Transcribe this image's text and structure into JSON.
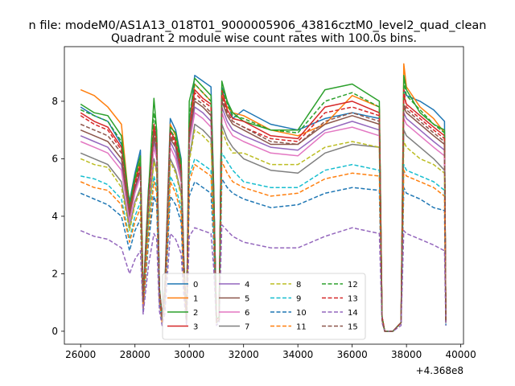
{
  "suptitle": "n file: modeM0/AS1A13_018T01_9000005906_43816cztM0_level2_quad_clean",
  "chart_data": {
    "type": "line",
    "title": "Quadrant 2 module wise count rates with 100.0s bins.",
    "xlabel": "",
    "ylabel": "",
    "x_offset_label": "+4.368e8",
    "xlim": [
      25400,
      40100
    ],
    "ylim": [
      -0.45,
      9.9
    ],
    "x_ticks": [
      26000,
      28000,
      30000,
      32000,
      34000,
      36000,
      38000,
      40000
    ],
    "x_tick_labels": [
      "26000",
      "28000",
      "30000",
      "32000",
      "34000",
      "36000",
      "38000",
      "40000"
    ],
    "y_ticks": [
      0,
      2,
      4,
      6,
      8
    ],
    "y_tick_labels": [
      "0",
      "2",
      "4",
      "6",
      "8"
    ],
    "grid": false,
    "legend_position": "lower-center",
    "legend_columns": 4,
    "x": [
      26000,
      26500,
      27000,
      27500,
      27800,
      28000,
      28200,
      28300,
      28500,
      28700,
      28800,
      28900,
      29000,
      29100,
      29300,
      29500,
      29700,
      29800,
      29900,
      30000,
      30200,
      30500,
      30800,
      30900,
      31000,
      31100,
      31200,
      31400,
      31600,
      32000,
      33000,
      34000,
      35000,
      36000,
      37000,
      37100,
      37200,
      37500,
      37800,
      37900,
      38000,
      38500,
      39000,
      39400,
      39450
    ],
    "series": [
      {
        "name": "0",
        "color": "#1f77b4",
        "dash": "solid",
        "values": [
          7.8,
          7.5,
          7.3,
          6.5,
          4.5,
          5.5,
          6.3,
          1.2,
          5.0,
          6.8,
          7.0,
          1.5,
          0.5,
          1.5,
          7.4,
          7.0,
          6.0,
          2.5,
          0.4,
          7.2,
          8.9,
          8.7,
          8.5,
          5.0,
          0.4,
          0.5,
          8.5,
          8.0,
          7.4,
          7.7,
          7.2,
          7.0,
          7.4,
          7.6,
          7.4,
          0.5,
          0.0,
          0.0,
          0.3,
          8.4,
          8.2,
          8.0,
          7.7,
          7.3,
          0.3
        ]
      },
      {
        "name": "1",
        "color": "#ff7f0e",
        "dash": "solid",
        "values": [
          8.4,
          8.2,
          7.8,
          7.2,
          4.3,
          5.3,
          6.0,
          1.1,
          4.8,
          6.5,
          6.8,
          1.4,
          0.5,
          1.4,
          7.2,
          6.8,
          5.8,
          2.4,
          0.4,
          7.0,
          8.6,
          8.3,
          8.0,
          4.8,
          0.4,
          0.5,
          8.2,
          7.8,
          7.6,
          7.5,
          7.0,
          6.8,
          7.2,
          8.2,
          7.8,
          0.5,
          0.0,
          0.0,
          0.3,
          9.3,
          8.5,
          7.8,
          7.4,
          6.9,
          0.3
        ]
      },
      {
        "name": "2",
        "color": "#2ca02c",
        "dash": "solid",
        "values": [
          7.9,
          7.6,
          7.5,
          6.8,
          4.4,
          5.4,
          6.1,
          1.2,
          4.9,
          8.1,
          7.0,
          1.5,
          0.5,
          1.4,
          7.1,
          6.9,
          5.9,
          2.4,
          0.4,
          8.0,
          8.8,
          8.5,
          8.2,
          4.9,
          0.4,
          0.5,
          8.7,
          8.0,
          7.6,
          7.3,
          7.0,
          7.0,
          8.4,
          8.6,
          8.0,
          0.5,
          0.0,
          0.0,
          0.3,
          8.9,
          8.4,
          7.6,
          7.2,
          7.0,
          0.3
        ]
      },
      {
        "name": "3",
        "color": "#d62728",
        "dash": "solid",
        "values": [
          7.6,
          7.3,
          7.1,
          6.4,
          4.2,
          5.2,
          5.8,
          1.1,
          4.7,
          7.2,
          6.6,
          1.4,
          0.5,
          1.3,
          7.0,
          6.6,
          5.7,
          2.3,
          0.4,
          7.0,
          8.4,
          8.1,
          7.9,
          4.7,
          0.4,
          0.5,
          8.4,
          7.7,
          7.4,
          7.3,
          6.8,
          6.7,
          7.8,
          8.0,
          7.6,
          0.5,
          0.0,
          0.0,
          0.3,
          8.2,
          7.9,
          7.5,
          7.1,
          6.8,
          0.3
        ]
      },
      {
        "name": "4",
        "color": "#9467bd",
        "dash": "solid",
        "values": [
          6.8,
          6.6,
          6.4,
          5.8,
          3.9,
          4.9,
          5.5,
          1.0,
          4.4,
          6.6,
          6.2,
          1.3,
          0.4,
          1.2,
          6.6,
          6.2,
          5.3,
          2.2,
          0.4,
          6.6,
          7.8,
          7.6,
          7.3,
          4.4,
          0.3,
          0.4,
          7.8,
          7.3,
          7.0,
          6.8,
          6.4,
          6.3,
          7.0,
          7.3,
          7.0,
          0.4,
          0.0,
          0.0,
          0.3,
          7.6,
          7.4,
          7.0,
          6.6,
          6.3,
          0.3
        ]
      },
      {
        "name": "5",
        "color": "#8c564b",
        "dash": "solid",
        "values": [
          7.0,
          6.8,
          6.6,
          6.0,
          4.0,
          5.0,
          5.6,
          1.0,
          4.5,
          6.8,
          6.3,
          1.3,
          0.4,
          1.3,
          6.7,
          6.4,
          5.5,
          2.2,
          0.4,
          6.8,
          8.0,
          7.8,
          7.5,
          4.5,
          0.3,
          0.4,
          8.0,
          7.5,
          7.2,
          7.0,
          6.5,
          6.5,
          7.2,
          7.5,
          7.2,
          0.4,
          0.0,
          0.0,
          0.3,
          7.8,
          7.6,
          7.2,
          6.8,
          6.5,
          0.3
        ]
      },
      {
        "name": "6",
        "color": "#e377c2",
        "dash": "solid",
        "values": [
          6.6,
          6.4,
          6.2,
          5.6,
          3.8,
          4.8,
          5.4,
          1.0,
          4.3,
          6.4,
          6.0,
          1.3,
          0.4,
          1.2,
          6.4,
          6.0,
          5.2,
          2.1,
          0.4,
          6.5,
          7.6,
          7.4,
          7.1,
          4.3,
          0.3,
          0.4,
          7.6,
          7.1,
          6.8,
          6.6,
          6.2,
          6.1,
          6.9,
          7.1,
          6.8,
          0.4,
          0.0,
          0.0,
          0.3,
          7.4,
          7.2,
          6.8,
          6.4,
          6.1,
          0.3
        ]
      },
      {
        "name": "7",
        "color": "#7f7f7f",
        "dash": "solid",
        "values": [
          6.2,
          6.0,
          5.8,
          5.2,
          3.6,
          4.5,
          5.0,
          0.9,
          4.0,
          6.0,
          5.6,
          1.2,
          0.4,
          1.1,
          6.0,
          5.6,
          4.8,
          2.0,
          0.3,
          6.0,
          7.2,
          7.0,
          6.7,
          4.0,
          0.3,
          0.4,
          7.2,
          6.7,
          6.4,
          6.0,
          5.6,
          5.5,
          6.2,
          6.5,
          6.4,
          0.4,
          0.0,
          0.0,
          0.3,
          7.0,
          6.8,
          6.4,
          6.0,
          5.6,
          0.3
        ]
      },
      {
        "name": "8",
        "color": "#bcbd22",
        "dash": "dashed",
        "values": [
          6.0,
          5.8,
          5.7,
          5.0,
          3.5,
          4.4,
          4.9,
          0.9,
          3.9,
          5.9,
          5.5,
          1.2,
          0.4,
          1.1,
          5.9,
          5.5,
          4.7,
          1.9,
          0.3,
          5.9,
          7.0,
          6.8,
          6.5,
          3.9,
          0.3,
          0.4,
          7.0,
          6.5,
          6.2,
          6.2,
          5.8,
          5.8,
          6.4,
          6.6,
          6.4,
          0.4,
          0.0,
          0.0,
          0.3,
          6.6,
          6.4,
          6.0,
          5.8,
          5.5,
          0.3
        ]
      },
      {
        "name": "9",
        "color": "#17becf",
        "dash": "dashed",
        "values": [
          5.4,
          5.3,
          5.1,
          4.6,
          3.2,
          4.0,
          4.5,
          0.8,
          3.6,
          5.4,
          5.0,
          1.1,
          0.4,
          1.0,
          5.4,
          5.0,
          4.3,
          1.8,
          0.3,
          5.4,
          6.0,
          5.8,
          5.6,
          3.5,
          0.3,
          0.4,
          6.2,
          5.9,
          5.6,
          5.2,
          5.0,
          5.0,
          5.6,
          5.8,
          5.6,
          0.4,
          0.0,
          0.0,
          0.3,
          5.8,
          5.6,
          5.4,
          5.2,
          4.9,
          0.3
        ]
      },
      {
        "name": "10",
        "color": "#1f77b4",
        "dash": "dashed",
        "values": [
          4.8,
          4.6,
          4.4,
          4.0,
          2.8,
          3.5,
          3.9,
          0.7,
          3.1,
          4.7,
          4.4,
          1.0,
          0.3,
          0.9,
          4.7,
          4.4,
          3.8,
          1.6,
          0.3,
          4.7,
          5.2,
          5.0,
          4.8,
          3.0,
          0.3,
          0.3,
          5.3,
          5.0,
          4.8,
          4.6,
          4.3,
          4.4,
          4.8,
          5.0,
          4.9,
          0.4,
          0.0,
          0.0,
          0.3,
          5.0,
          4.8,
          4.6,
          4.3,
          4.2,
          0.2
        ]
      },
      {
        "name": "11",
        "color": "#ff7f0e",
        "dash": "dashed",
        "values": [
          5.2,
          5.0,
          4.9,
          4.4,
          3.1,
          3.8,
          4.3,
          0.8,
          3.4,
          5.2,
          4.8,
          1.1,
          0.3,
          1.0,
          5.2,
          4.8,
          4.1,
          1.7,
          0.3,
          5.2,
          5.8,
          5.6,
          5.4,
          3.4,
          0.3,
          0.4,
          5.9,
          5.5,
          5.2,
          5.0,
          4.7,
          4.8,
          5.3,
          5.5,
          5.4,
          0.4,
          0.0,
          0.0,
          0.3,
          5.6,
          5.4,
          5.2,
          5.0,
          4.7,
          0.3
        ]
      },
      {
        "name": "12",
        "color": "#2ca02c",
        "dash": "dashed",
        "values": [
          7.7,
          7.5,
          7.3,
          6.6,
          4.3,
          5.3,
          5.9,
          1.1,
          4.8,
          7.6,
          6.8,
          1.4,
          0.5,
          1.4,
          7.0,
          6.7,
          5.8,
          2.3,
          0.4,
          7.5,
          8.6,
          8.3,
          8.0,
          4.8,
          0.4,
          0.5,
          8.5,
          7.9,
          7.5,
          7.4,
          7.0,
          6.9,
          8.0,
          8.3,
          7.8,
          0.5,
          0.0,
          0.0,
          0.3,
          8.7,
          8.2,
          7.7,
          7.2,
          6.9,
          0.3
        ]
      },
      {
        "name": "13",
        "color": "#d62728",
        "dash": "dashed",
        "values": [
          7.5,
          7.2,
          7.0,
          6.3,
          4.2,
          5.1,
          5.7,
          1.1,
          4.6,
          7.0,
          6.5,
          1.4,
          0.5,
          1.3,
          6.9,
          6.5,
          5.6,
          2.3,
          0.4,
          7.0,
          8.3,
          8.0,
          7.8,
          4.6,
          0.4,
          0.5,
          8.2,
          7.6,
          7.3,
          7.1,
          6.7,
          6.6,
          7.6,
          7.8,
          7.5,
          0.5,
          0.0,
          0.0,
          0.3,
          8.4,
          7.8,
          7.4,
          7.0,
          6.7,
          0.3
        ]
      },
      {
        "name": "14",
        "color": "#9467bd",
        "dash": "dashed",
        "values": [
          3.5,
          3.3,
          3.2,
          2.9,
          2.0,
          2.5,
          2.8,
          0.6,
          2.3,
          3.4,
          3.2,
          0.7,
          0.2,
          0.6,
          3.4,
          3.2,
          2.7,
          1.2,
          0.2,
          3.3,
          3.6,
          3.5,
          3.4,
          2.2,
          0.2,
          0.3,
          3.7,
          3.5,
          3.3,
          3.1,
          2.9,
          2.9,
          3.3,
          3.6,
          3.4,
          0.3,
          0.0,
          0.0,
          0.2,
          3.5,
          3.4,
          3.2,
          3.0,
          2.8,
          0.2
        ]
      },
      {
        "name": "15",
        "color": "#8c564b",
        "dash": "dashed",
        "values": [
          7.2,
          7.0,
          6.8,
          6.2,
          4.1,
          5.0,
          5.6,
          1.0,
          4.5,
          6.9,
          6.4,
          1.3,
          0.4,
          1.3,
          6.8,
          6.4,
          5.5,
          2.2,
          0.4,
          6.9,
          8.1,
          7.9,
          7.6,
          4.5,
          0.3,
          0.4,
          8.1,
          7.6,
          7.3,
          7.1,
          6.6,
          6.5,
          7.3,
          7.6,
          7.3,
          0.4,
          0.0,
          0.0,
          0.3,
          7.9,
          7.7,
          7.3,
          6.9,
          6.6,
          0.3
        ]
      }
    ]
  }
}
